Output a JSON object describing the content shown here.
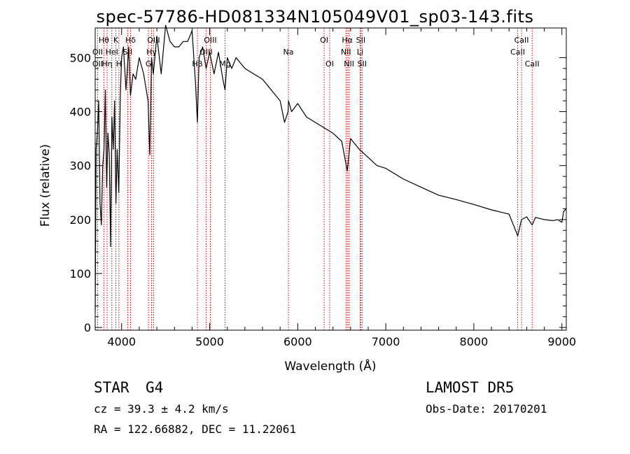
{
  "chart_data": {
    "type": "line",
    "title": "spec-57786-HD081334N105049V01_sp03-143.fits",
    "xlabel": "Wavelength (Å)",
    "ylabel": "Flux (relative)",
    "xlim": [
      3700,
      9050
    ],
    "ylim": [
      -5,
      555
    ],
    "xticks": [
      4000,
      5000,
      6000,
      7000,
      8000,
      9000
    ],
    "yticks": [
      0,
      100,
      200,
      300,
      400,
      500
    ],
    "grid": false,
    "line_color": "#000000",
    "marker_color": "#cc0000",
    "series": [
      {
        "x": [
          3700,
          3710,
          3725,
          3740,
          3755,
          3770,
          3785,
          3800,
          3815,
          3830,
          3845,
          3860,
          3875,
          3890,
          3905,
          3920,
          3935,
          3950,
          3968,
          3985,
          4000,
          4020,
          4050,
          4080,
          4101,
          4130,
          4160,
          4200,
          4250,
          4300,
          4320,
          4340,
          4360,
          4400,
          4450,
          4500,
          4550,
          4600,
          4650,
          4700,
          4750,
          4800,
          4840,
          4861,
          4880,
          4920,
          4960,
          5000,
          5050,
          5100,
          5150,
          5175,
          5200,
          5250,
          5300,
          5400,
          5500,
          5600,
          5700,
          5800,
          5850,
          5890,
          5896,
          5930,
          6000,
          6100,
          6200,
          6300,
          6400,
          6500,
          6563,
          6600,
          6700,
          6800,
          6900,
          7000,
          7200,
          7400,
          7600,
          7800,
          8000,
          8200,
          8400,
          8498,
          8542,
          8600,
          8662,
          8700,
          8800,
          8900,
          8950,
          9000,
          9020,
          9050
        ],
        "y": [
          30,
          330,
          360,
          420,
          230,
          190,
          300,
          330,
          440,
          260,
          360,
          320,
          150,
          390,
          330,
          420,
          230,
          330,
          250,
          430,
          500,
          520,
          440,
          520,
          430,
          470,
          460,
          500,
          470,
          420,
          320,
          500,
          470,
          540,
          470,
          560,
          530,
          520,
          520,
          530,
          530,
          550,
          450,
          380,
          500,
          520,
          480,
          510,
          470,
          510,
          460,
          440,
          500,
          480,
          500,
          480,
          470,
          460,
          440,
          420,
          380,
          400,
          420,
          400,
          415,
          390,
          380,
          370,
          360,
          345,
          290,
          350,
          330,
          315,
          300,
          295,
          275,
          260,
          245,
          237,
          228,
          218,
          210,
          170,
          200,
          205,
          190,
          204,
          200,
          198,
          200,
          195,
          215,
          220
        ]
      }
    ],
    "lines": [
      {
        "label": "Hθ",
        "x": 3798,
        "row": 0
      },
      {
        "label": "OII",
        "x": 3727,
        "row": 1
      },
      {
        "label": "OII",
        "x": 3727,
        "row": 2
      },
      {
        "label": "HeI",
        "x": 3889,
        "row": 1
      },
      {
        "label": "Hη",
        "x": 3835,
        "row": 2
      },
      {
        "label": "K",
        "x": 3934,
        "row": 0
      },
      {
        "label": "H",
        "x": 3969,
        "row": 2
      },
      {
        "label": "Hδ",
        "x": 4101,
        "row": 0
      },
      {
        "label": "SII",
        "x": 4070,
        "row": 1
      },
      {
        "label": "OIII",
        "x": 4363,
        "row": 0
      },
      {
        "label": "Hγ",
        "x": 4340,
        "row": 1
      },
      {
        "label": "G",
        "x": 4305,
        "row": 2
      },
      {
        "label": "OIII",
        "x": 5007,
        "row": 0
      },
      {
        "label": "OIII",
        "x": 4959,
        "row": 1
      },
      {
        "label": "Hβ",
        "x": 4861,
        "row": 2
      },
      {
        "label": "Mg",
        "x": 5175,
        "row": 2
      },
      {
        "label": "Na",
        "x": 5894,
        "row": 1
      },
      {
        "label": "OI",
        "x": 6300,
        "row": 0
      },
      {
        "label": "OI",
        "x": 6363,
        "row": 2
      },
      {
        "label": "Hα",
        "x": 6563,
        "row": 0
      },
      {
        "label": "SII",
        "x": 6716,
        "row": 0
      },
      {
        "label": "NII",
        "x": 6548,
        "row": 1
      },
      {
        "label": "Li",
        "x": 6708,
        "row": 1
      },
      {
        "label": "NII",
        "x": 6583,
        "row": 2
      },
      {
        "label": "SII",
        "x": 6731,
        "row": 2
      },
      {
        "label": "CaII",
        "x": 8542,
        "row": 0
      },
      {
        "label": "CaII",
        "x": 8498,
        "row": 1
      },
      {
        "label": "CaII",
        "x": 8662,
        "row": 2
      }
    ]
  },
  "info": {
    "class": "STAR",
    "subclass": "G4",
    "survey": "LAMOST DR5",
    "cz": "cz = 39.3 ± 4.2 km/s",
    "obs_date": "Obs-Date: 20170201",
    "coords": "RA = 122.66882, DEC =  11.22061"
  }
}
